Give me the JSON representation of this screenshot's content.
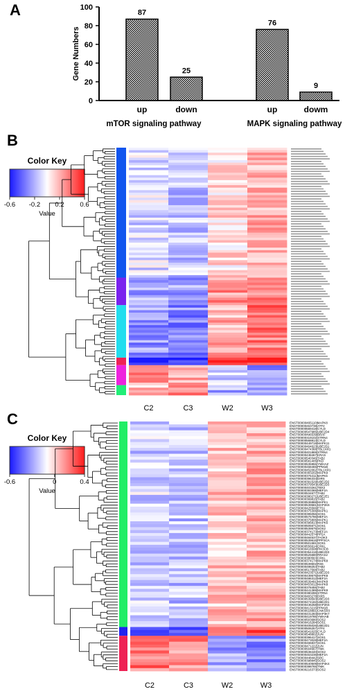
{
  "panels": {
    "A": "A",
    "B": "B",
    "C": "C"
  },
  "chart_data": [
    {
      "type": "bar",
      "ylabel": "Gene Numbers",
      "ylim": [
        0,
        100
      ],
      "yticks": [
        0,
        20,
        40,
        60,
        80,
        100
      ],
      "groups": [
        {
          "name": "mTOR signaling pathway",
          "bars": [
            {
              "label": "up",
              "value": 87
            },
            {
              "label": "down",
              "value": 25
            }
          ]
        },
        {
          "name": "MAPK signaling pathway",
          "bars": [
            {
              "label": "up",
              "value": 76
            },
            {
              "label": "dowm",
              "value": 9
            }
          ]
        }
      ],
      "bar_pattern": "checkered black/white"
    },
    {
      "type": "heatmap",
      "columns": [
        "C2",
        "C3",
        "W2",
        "W3"
      ],
      "color_key": {
        "title": "Color Key",
        "xlabel": "Value",
        "ticks": [
          "-0.6",
          "-0.2",
          "0.2",
          "0.6"
        ],
        "colors": [
          "#1a1aff",
          "#ffffff",
          "#ff1a1a"
        ]
      },
      "row_count": 99,
      "cluster_colors": [
        "#1155ee",
        "#7a22ee",
        "#22ddee",
        "#ee2255",
        "#ee22dd",
        "#22ee77"
      ],
      "row_clusters": [
        {
          "color": "#1155ee",
          "rows": 52
        },
        {
          "color": "#7a22ee",
          "rows": 11
        },
        {
          "color": "#22ddee",
          "rows": 21
        },
        {
          "color": "#ee2255",
          "rows": 3
        },
        {
          "color": "#ee22dd",
          "rows": 8
        },
        {
          "color": "#22ee77",
          "rows": 4
        }
      ],
      "row_labels_note": "gene IDs too small to read"
    },
    {
      "type": "heatmap",
      "columns": [
        "C2",
        "C3",
        "W2",
        "W3"
      ],
      "color_key": {
        "title": "Color Key",
        "xlabel": "Value",
        "ticks": [
          "-0.6",
          "0",
          "0.4"
        ],
        "colors": [
          "#1a1aff",
          "#ffffff",
          "#ff1a1a"
        ]
      },
      "row_clusters": [
        {
          "color": "#22ee66",
          "rows": 70
        },
        {
          "color": "#2222ee",
          "rows": 3
        },
        {
          "color": "#ee2255",
          "rows": 12
        }
      ],
      "row_labels": [
        "ENST00000465110|MAPK8",
        "ENST00000453738|ATF2",
        "ENST00000569418|CYLD",
        "ENST00000547985|UBE2D4",
        "ENST00000496539|BRAF",
        "ENST00000319102|STRN4",
        "ENST00000568813|CYLD",
        "ENST00000449719|MAPK11",
        "ENST00000464623|UBE2D1",
        "ENST00000474368|TBL1XR1",
        "ENST00000401869|STRN4",
        "ENST00000438467|KRAS",
        "ENST00000540346|TAB2",
        "ENST00000581405|PKD",
        "ENST00000535955|YWHAZ",
        "ENST00000458465|PPM1B",
        "ENST00000452062|TBL1XR1",
        "ENST00000383202|MAPK9",
        "ENST00000376411|MAPK6",
        "ENST00000396334|DIRS",
        "ENST00000391529|UBE2D2",
        "ENST00000379543|UBE2D3",
        "ENST00000403261|TBX2",
        "ENST00000393365|MEF2A",
        "ENST00000534677|TAB2",
        "ENST00000380271|UBE2E1",
        "ENST00000369815|TAB2",
        "ENST00000536888|MAPK1",
        "ENST00000539581|MAP2K6",
        "ENST00000425566|ETS1",
        "ENST00000375306|MAPK1",
        "ENST00000395056|SOS1",
        "ENST00000575786|MEF2A",
        "ENST00000375806|MAPK1",
        "ENST00000396813|MAPK6",
        "ENST00000505671|SOS1",
        "ENST00000539575|SOS2",
        "ENST00000374173|MEF2A",
        "ENST00000442574|PP2A",
        "ENST00000484537|TAOK3",
        "ENST00000539615|PPP3CA",
        "ENST00000501581|SOS1",
        "ENST00000556614|CRKL",
        "ENST00000416508|PIK3CB",
        "ENST00000354418|UBE2D3",
        "ENST00000525680|RRAS2",
        "ENST00000380563|CRKL",
        "ENST00000374174|MAPK8",
        "ENST00000539602|RS6",
        "ENST00000498253|TAB2",
        "ENST00000517568|TAB2",
        "ENST00000423571|UBE2D3",
        "ENST00000439575|MAPK8",
        "ENST00000486312|MEF2A",
        "ENST00000539491|MAPK8",
        "ENST00000453012|MAPK8",
        "ENST00000378455|TAB2",
        "ENST00000441389|MAPK9",
        "ENST00000380286|STRN4",
        "ENST00000483278|DIRS",
        "ENST00000539593|UBE2D3",
        "ENST00000474182|UBE2D1",
        "ENST00000436258|MAP2K6",
        "ENST00000413215|PPM1B",
        "ENST00000518891|CNKSR3",
        "ENST00000431283|MAP3K7",
        "ENST00000419785|YWHAB",
        "ENST00000503680|SOS2",
        "ENST00000416284|SOS1",
        "ENST00000405026|UBE2D1",
        "ENST00000506257|ATF4",
        "ENST00000541025|CYLD",
        "ENST00000548802|JUN",
        "ENST00000396417|SOS1",
        "ENST00000473028|MEF2A",
        "ENST00000466837|SOS1",
        "ENST00000471222|JUN",
        "ENST00000504667|TNIK",
        "ENST00000538440|SOS2",
        "ENST00000453236|MEF2A",
        "ENST00000448442|SRC",
        "ENST00000398845|SOS2",
        "ENST00000540509|MAP4K4",
        "ENST00000398765|TNIK",
        "ENST00000216373|SOS2"
      ]
    }
  ]
}
